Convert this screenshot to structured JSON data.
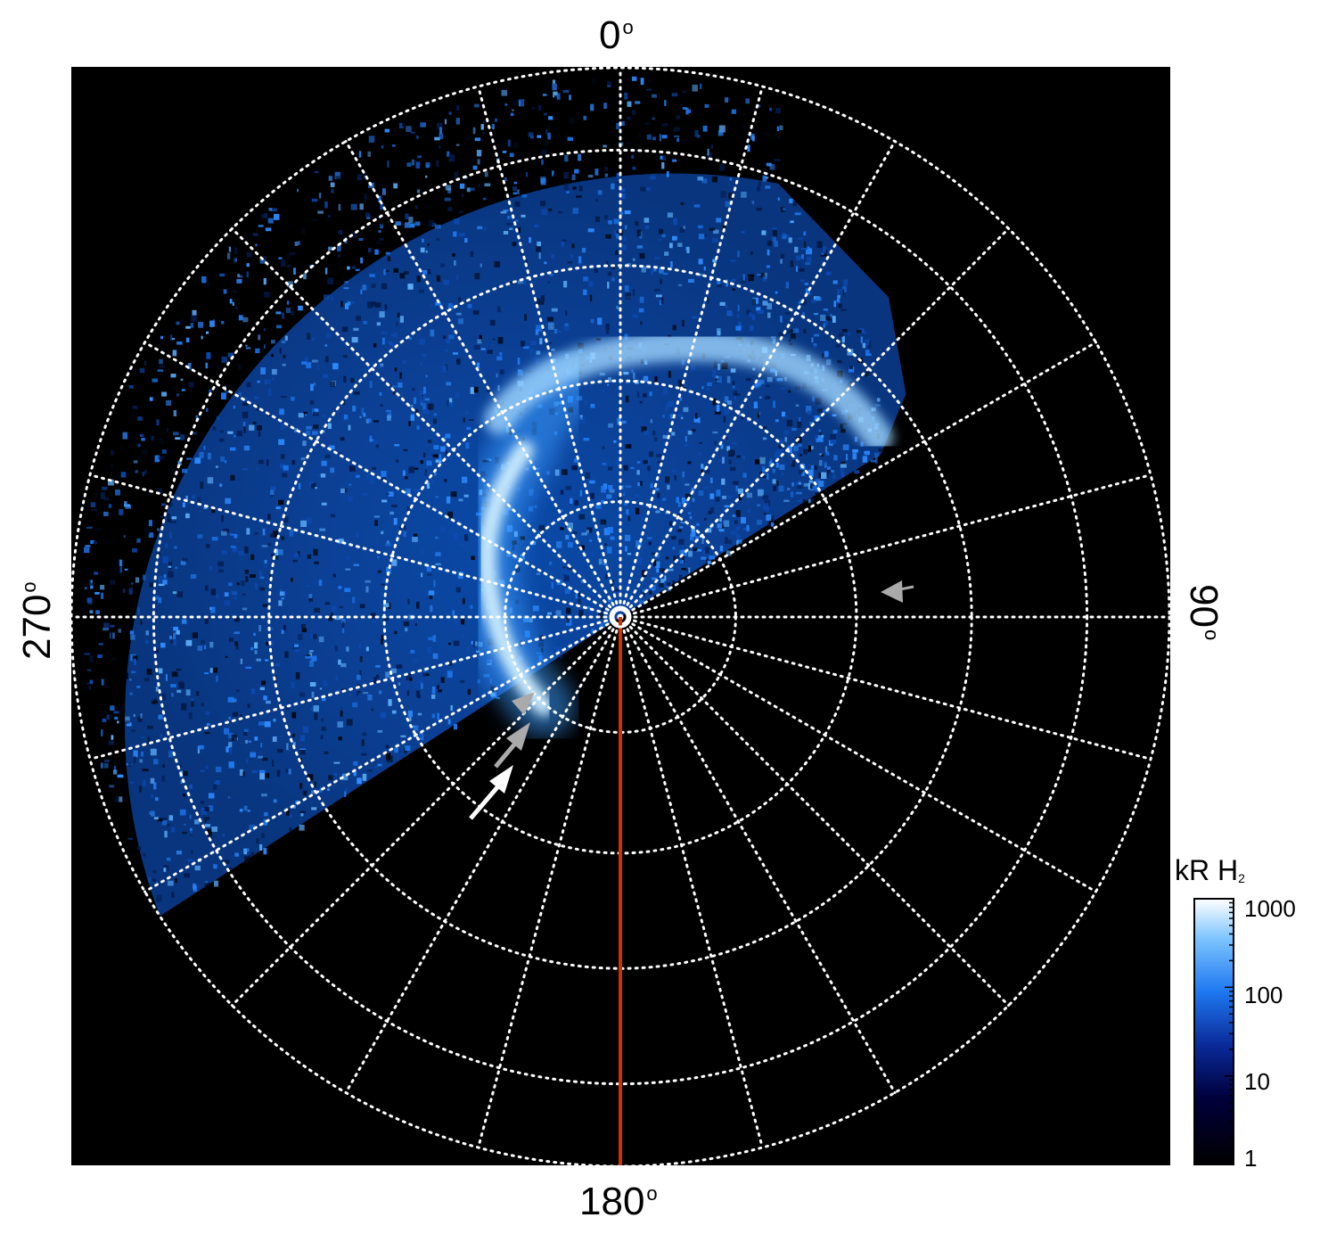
{
  "axis_labels": {
    "top": "0",
    "right": "90",
    "bottom": "180",
    "left": "270",
    "degree_symbol": "o"
  },
  "colorbar": {
    "title_main": "kR H",
    "title_sub": "2",
    "scale": "log",
    "range": [
      1,
      1000
    ],
    "tick_labels": [
      "1000",
      "100",
      "10",
      "1"
    ],
    "colors": [
      "#000000",
      "#00003c",
      "#0a2a9a",
      "#1e78f0",
      "#7cc4ff",
      "#ffffff"
    ]
  },
  "colors": {
    "background": "#000000",
    "grid": "#ffffff",
    "meridian_line": "#cc3300",
    "arrow_white": "#ffffff",
    "arrow_gray": "#aaaaaa",
    "emission_dim": "#0a3d8c",
    "emission_mid": "#1e78f0",
    "emission_bright": "#e8f6ff"
  }
}
